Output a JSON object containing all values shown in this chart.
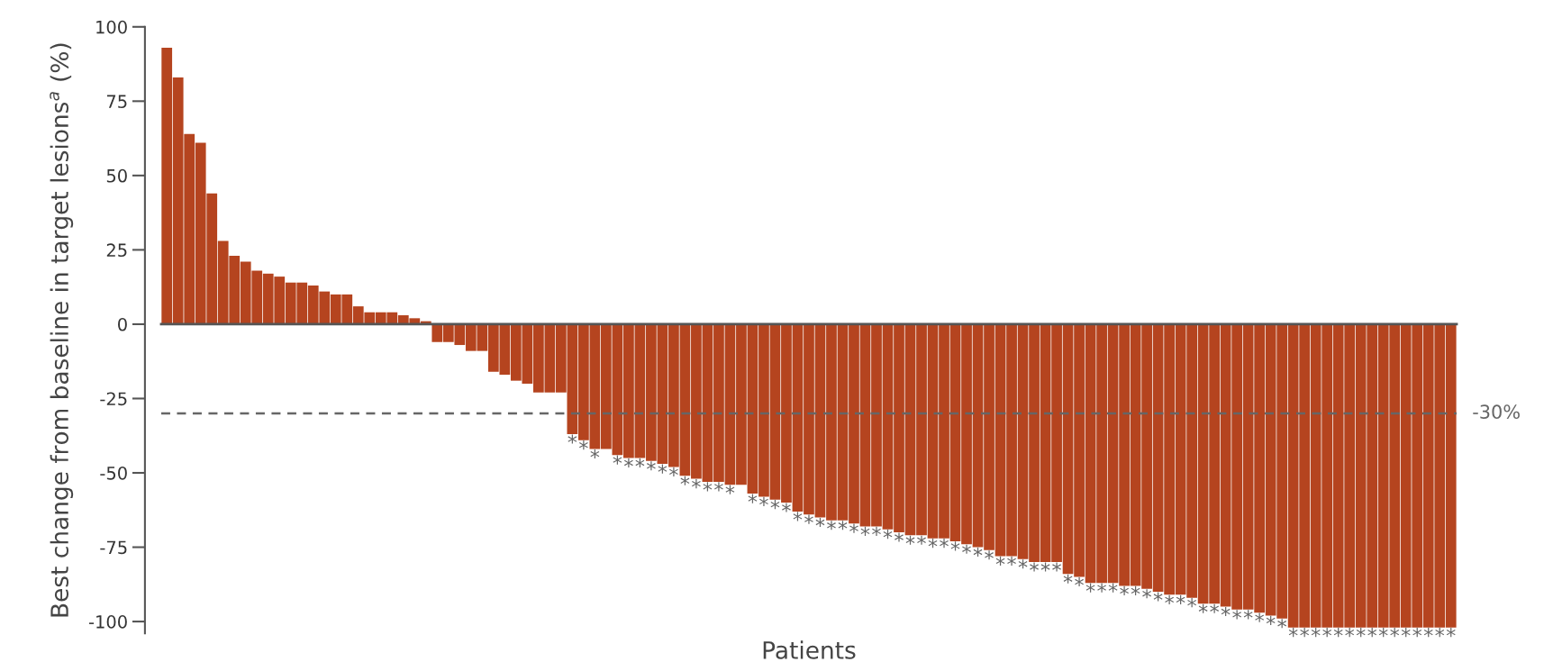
{
  "chart_data": {
    "type": "bar",
    "xlabel": "Patients",
    "ylabel": "Best change from baseline in target lesions$^{a}$ (%)",
    "categories": [
      null,
      null,
      null,
      null,
      null,
      null,
      null,
      null,
      null,
      null,
      null,
      null,
      null,
      null,
      null,
      null,
      null,
      null,
      null,
      null,
      null,
      null,
      null,
      null,
      null,
      null,
      null,
      null,
      null,
      null,
      null,
      null,
      null,
      null,
      null,
      null,
      null,
      null,
      null,
      null,
      null,
      null,
      null,
      null,
      null,
      null,
      null,
      null,
      null,
      null,
      null,
      null,
      null,
      null,
      null,
      null,
      null,
      null,
      null,
      null,
      null,
      null,
      null,
      null,
      null,
      null,
      null,
      null,
      null,
      null,
      null,
      null,
      null,
      null,
      null,
      null,
      null,
      null,
      null,
      null,
      null,
      null,
      null,
      null,
      null,
      null,
      null,
      null,
      null,
      null,
      null,
      null,
      null,
      null,
      null,
      null,
      null,
      null,
      null,
      null,
      null,
      null,
      null,
      null,
      null,
      null,
      null,
      null,
      null,
      null,
      null,
      null,
      null,
      null,
      null
    ],
    "values": [
      93,
      83,
      64,
      61,
      44,
      28,
      23,
      21,
      18,
      17,
      16,
      14,
      14,
      13,
      11,
      10,
      10,
      6,
      4,
      4,
      4,
      3,
      2,
      1,
      -6,
      -6,
      -7,
      -9,
      -9,
      -16,
      -17,
      -19,
      -20,
      -23,
      -23,
      -23,
      -37,
      -39,
      -42,
      -42,
      -44,
      -45,
      -45,
      -46,
      -47,
      -48,
      -51,
      -52,
      -53,
      -53,
      -54,
      -54,
      -57,
      -58,
      -59,
      -60,
      -63,
      -64,
      -65,
      -66,
      -66,
      -67,
      -68,
      -68,
      -69,
      -70,
      -71,
      -71,
      -72,
      -72,
      -73,
      -74,
      -75,
      -76,
      -78,
      -78,
      -79,
      -80,
      -80,
      -80,
      -84,
      -85,
      -87,
      -87,
      -87,
      -88,
      -88,
      -89,
      -90,
      -91,
      -91,
      -92,
      -94,
      -94,
      -95,
      -96,
      -96,
      -97,
      -98,
      -99,
      -102,
      -102,
      -102,
      -102,
      -102,
      -102,
      -102,
      -102,
      -102,
      -102,
      -102,
      -102,
      -102,
      -102,
      -102
    ],
    "value_labels": [
      null,
      null,
      null,
      null,
      null,
      null,
      null,
      null,
      null,
      null,
      null,
      null,
      null,
      null,
      null,
      null,
      null,
      null,
      null,
      null,
      null,
      null,
      null,
      null,
      null,
      null,
      null,
      null,
      null,
      null,
      null,
      null,
      null,
      null,
      null,
      null,
      "*",
      "*",
      "*",
      null,
      "*",
      "*",
      "*",
      "*",
      "*",
      "*",
      "*",
      "*",
      "*",
      "*",
      "*",
      null,
      "*",
      "*",
      "*",
      "*",
      "*",
      "*",
      "*",
      "*",
      "*",
      "*",
      "*",
      "*",
      "*",
      "*",
      "*",
      "*",
      "*",
      "*",
      "*",
      "*",
      "*",
      "*",
      "*",
      "*",
      "*",
      "*",
      "*",
      "*",
      "*",
      "*",
      "*",
      "*",
      "*",
      "*",
      "*",
      "*",
      "*",
      "*",
      "*",
      "*",
      "*",
      "*",
      "*",
      "*",
      "*",
      "*",
      "*",
      "*",
      "*",
      "*",
      "*",
      "*",
      "*",
      "*",
      "*",
      "*",
      "*",
      "*",
      "*",
      "*",
      "*",
      "*",
      "*"
    ],
    "color": "#b5441f",
    "ylim": [
      -104,
      100
    ],
    "yticks": [
      100,
      75,
      50,
      25,
      0,
      -25,
      -50,
      -75,
      -100
    ],
    "tick_labels": "y",
    "ref_lines": [
      {
        "axis": "y",
        "value": -30,
        "label": "-30%",
        "color": "#666666",
        "line_style": "dashed"
      }
    ]
  }
}
